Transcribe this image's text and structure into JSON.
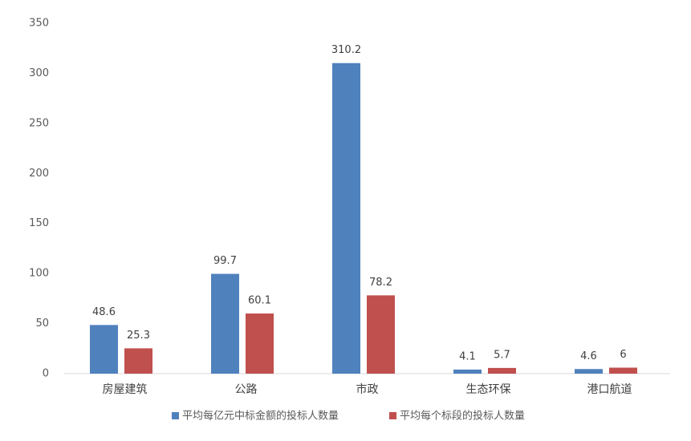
{
  "chart_data": {
    "type": "bar",
    "categories": [
      "房屋建筑",
      "公路",
      "市政",
      "生态环保",
      "港口航道"
    ],
    "series": [
      {
        "name": "平均每亿元中标金额的投标人数量",
        "color": "#4f81bd",
        "values": [
          48.6,
          99.7,
          310.2,
          4.1,
          4.6
        ]
      },
      {
        "name": "平均每个标段的投标人数量",
        "color": "#c0504d",
        "values": [
          25.3,
          60.1,
          78.2,
          5.7,
          6
        ]
      }
    ],
    "ylim": [
      0,
      350
    ],
    "yticks": [
      0,
      50,
      100,
      150,
      200,
      250,
      300,
      350
    ],
    "grid": false,
    "legend": "bottom"
  }
}
